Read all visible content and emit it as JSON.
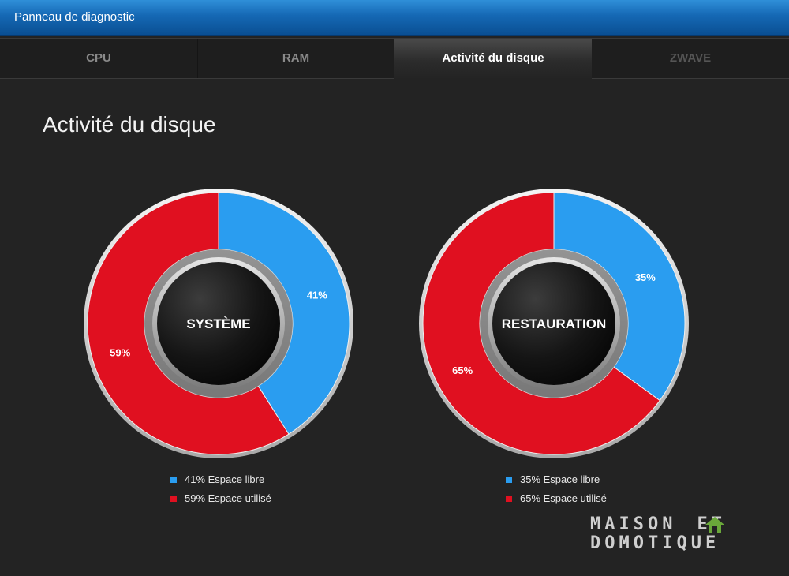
{
  "window": {
    "title": "Panneau de diagnostic"
  },
  "tabs": [
    {
      "label": "CPU",
      "state": "normal"
    },
    {
      "label": "RAM",
      "state": "normal"
    },
    {
      "label": "Activité du disque",
      "state": "active"
    },
    {
      "label": "ZWAVE",
      "state": "disabled"
    }
  ],
  "main": {
    "title": "Activité du disque"
  },
  "colors": {
    "free": "#2a9df0",
    "used": "#e01020",
    "background": "#232323",
    "titlebar": "#1568b4"
  },
  "chart_data": [
    {
      "type": "pie",
      "center_label": "SYSTÈME",
      "categories": [
        "Espace libre",
        "Espace utilisé"
      ],
      "values": [
        41,
        59
      ],
      "slice_labels": [
        "41%",
        "59%"
      ],
      "legend": [
        "41% Espace libre",
        "59% Espace utilisé"
      ]
    },
    {
      "type": "pie",
      "center_label": "RESTAURATION",
      "categories": [
        "Espace libre",
        "Espace utilisé"
      ],
      "values": [
        35,
        65
      ],
      "slice_labels": [
        "35%",
        "65%"
      ],
      "legend": [
        "35% Espace libre",
        "65% Espace utilisé"
      ]
    }
  ],
  "watermark": {
    "line1": "MAISON",
    "line1_suffix": "ET",
    "line2": "DOMOTIQUE"
  }
}
